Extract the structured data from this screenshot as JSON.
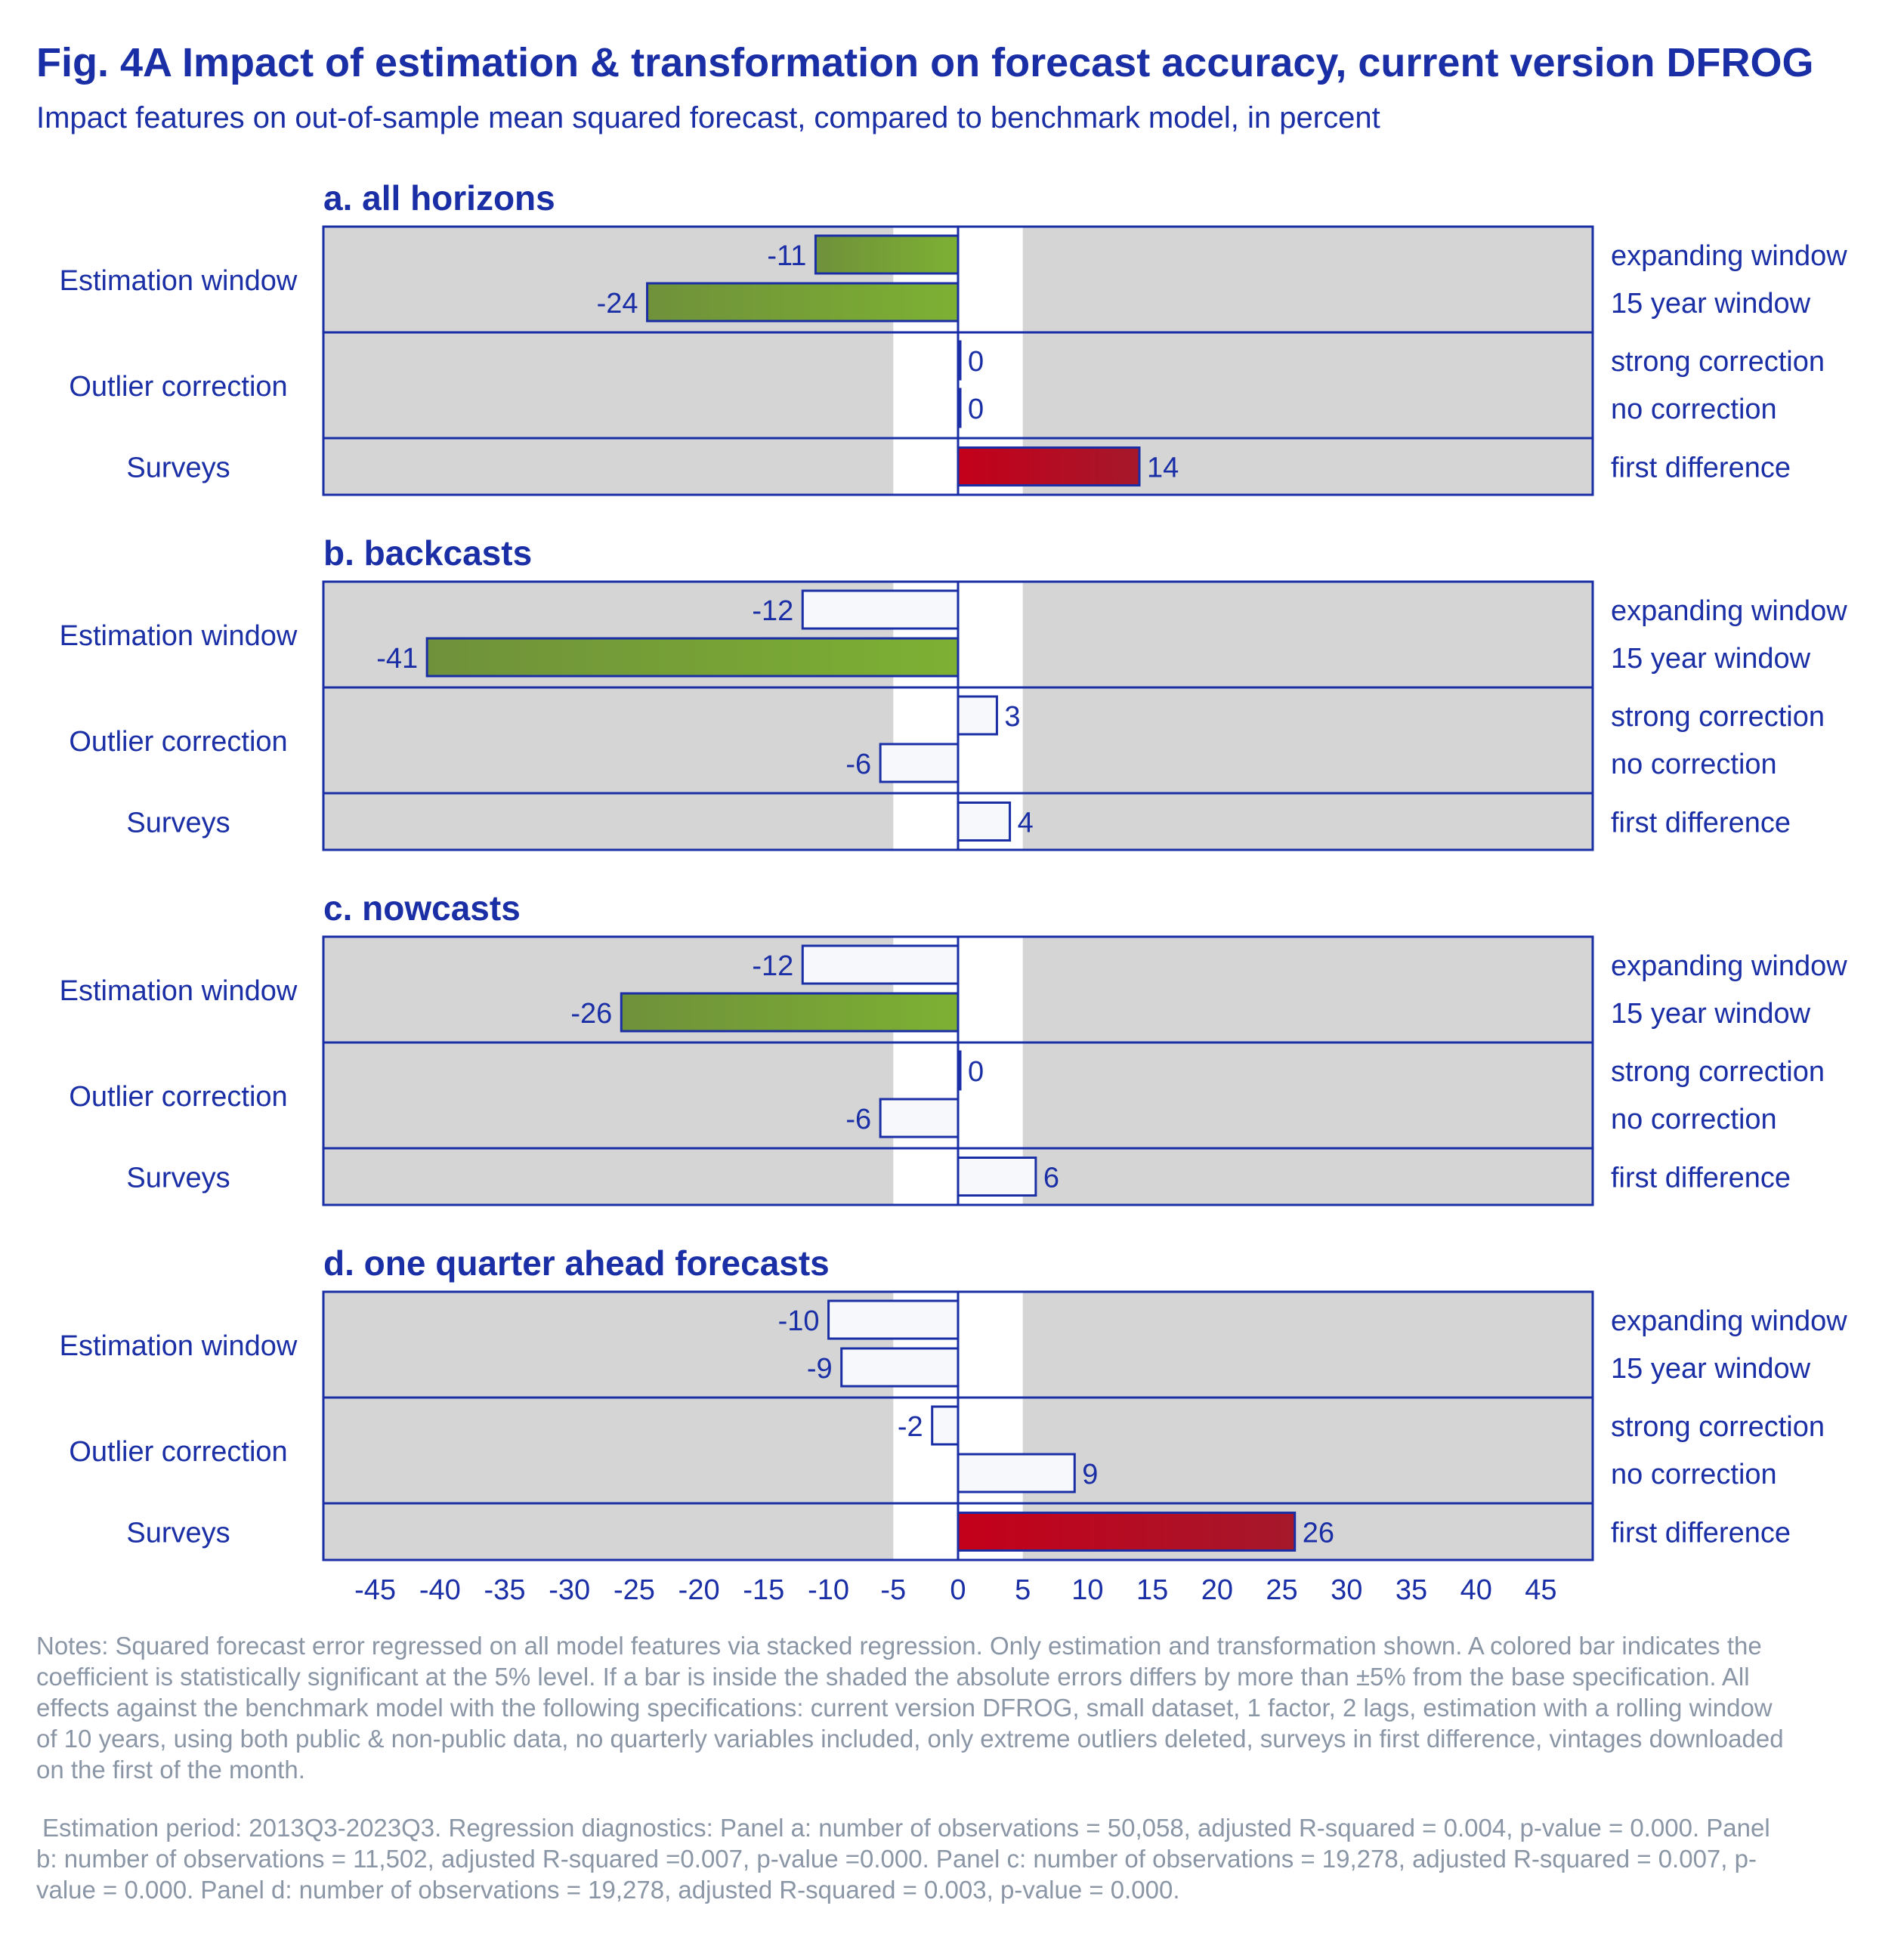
{
  "title": "Fig. 4A Impact of estimation & transformation on forecast accuracy, current version DFROG",
  "subtitle": "Impact features on out-of-sample mean squared forecast, compared to benchmark model, in percent",
  "colors": {
    "text": "#1a2ea6",
    "panel_bg": "#d5d5d5",
    "band": "#ffffff",
    "outline": "#1a2ea6",
    "negative_significant": "#7aa833",
    "positive_significant": "#c4001a",
    "not_significant": "#f6f8fb",
    "notes": "#8a96a6"
  },
  "chart_data": {
    "type": "bar",
    "orientation": "horizontal",
    "x_ticks": [
      -45,
      -40,
      -35,
      -30,
      -25,
      -20,
      -15,
      -10,
      -5,
      0,
      5,
      10,
      15,
      20,
      25,
      30,
      35,
      40,
      45
    ],
    "xlim": [
      -49,
      49
    ],
    "shaded_band": [
      -5,
      5
    ],
    "panels": [
      {
        "title": "a. all horizons",
        "groups": [
          {
            "label": "Estimation window",
            "bars": [
              {
                "label": "expanding window",
                "value": -11,
                "significant": true
              },
              {
                "label": "15 year window",
                "value": -24,
                "significant": true
              }
            ]
          },
          {
            "label": "Outlier correction",
            "bars": [
              {
                "label": "strong correction",
                "value": 0,
                "significant": false
              },
              {
                "label": "no correction",
                "value": 0,
                "significant": false
              }
            ]
          },
          {
            "label": "Surveys",
            "bars": [
              {
                "label": "first difference",
                "value": 14,
                "significant": true
              }
            ]
          }
        ]
      },
      {
        "title": "b. backcasts",
        "groups": [
          {
            "label": "Estimation window",
            "bars": [
              {
                "label": "expanding window",
                "value": -12,
                "significant": false
              },
              {
                "label": "15 year window",
                "value": -41,
                "significant": true
              }
            ]
          },
          {
            "label": "Outlier correction",
            "bars": [
              {
                "label": "strong correction",
                "value": 3,
                "significant": false
              },
              {
                "label": "no correction",
                "value": -6,
                "significant": false
              }
            ]
          },
          {
            "label": "Surveys",
            "bars": [
              {
                "label": "first difference",
                "value": 4,
                "significant": false
              }
            ]
          }
        ]
      },
      {
        "title": "c. nowcasts",
        "groups": [
          {
            "label": "Estimation window",
            "bars": [
              {
                "label": "expanding window",
                "value": -12,
                "significant": false
              },
              {
                "label": "15 year window",
                "value": -26,
                "significant": true
              }
            ]
          },
          {
            "label": "Outlier correction",
            "bars": [
              {
                "label": "strong correction",
                "value": 0,
                "significant": false
              },
              {
                "label": "no correction",
                "value": -6,
                "significant": false
              }
            ]
          },
          {
            "label": "Surveys",
            "bars": [
              {
                "label": "first difference",
                "value": 6,
                "significant": false
              }
            ]
          }
        ]
      },
      {
        "title": "d. one quarter ahead forecasts",
        "groups": [
          {
            "label": "Estimation window",
            "bars": [
              {
                "label": "expanding window",
                "value": -10,
                "significant": false
              },
              {
                "label": "15 year window",
                "value": -9,
                "significant": false
              }
            ]
          },
          {
            "label": "Outlier correction",
            "bars": [
              {
                "label": "strong correction",
                "value": -2,
                "significant": false
              },
              {
                "label": "no correction",
                "value": 9,
                "significant": false
              }
            ]
          },
          {
            "label": "Surveys",
            "bars": [
              {
                "label": "first difference",
                "value": 26,
                "significant": true
              }
            ]
          }
        ]
      }
    ]
  },
  "notes": {
    "paragraph_1": "Notes: Squared forecast error regressed on all model features via stacked regression. Only estimation and transformation shown. A colored bar indicates the coefficient is statistically significant at the 5% level. If a bar is inside the shaded the absolute errors differs by more than ±5% from the base specification. All effects against the benchmark model with the following specifications: current version DFROG, small dataset, 1 factor, 2 lags, estimation with a rolling window of 10 years, using both public & non-public data, no quarterly variables included, only extreme outliers deleted, surveys in first difference, vintages downloaded on the first of the month.",
    "paragraph_2": "Estimation period: 2013Q3-2023Q3. Regression diagnostics: Panel a: number of observations = 50,058, adjusted R-squared = 0.004, p-value = 0.000. Panel b: number of observations = 11,502, adjusted R-squared =0.007, p-value =0.000. Panel c: number of observations = 19,278, adjusted R-squared = 0.007, p-value = 0.000. Panel d: number of observations = 19,278, adjusted R-squared = 0.003, p-value = 0.000."
  }
}
